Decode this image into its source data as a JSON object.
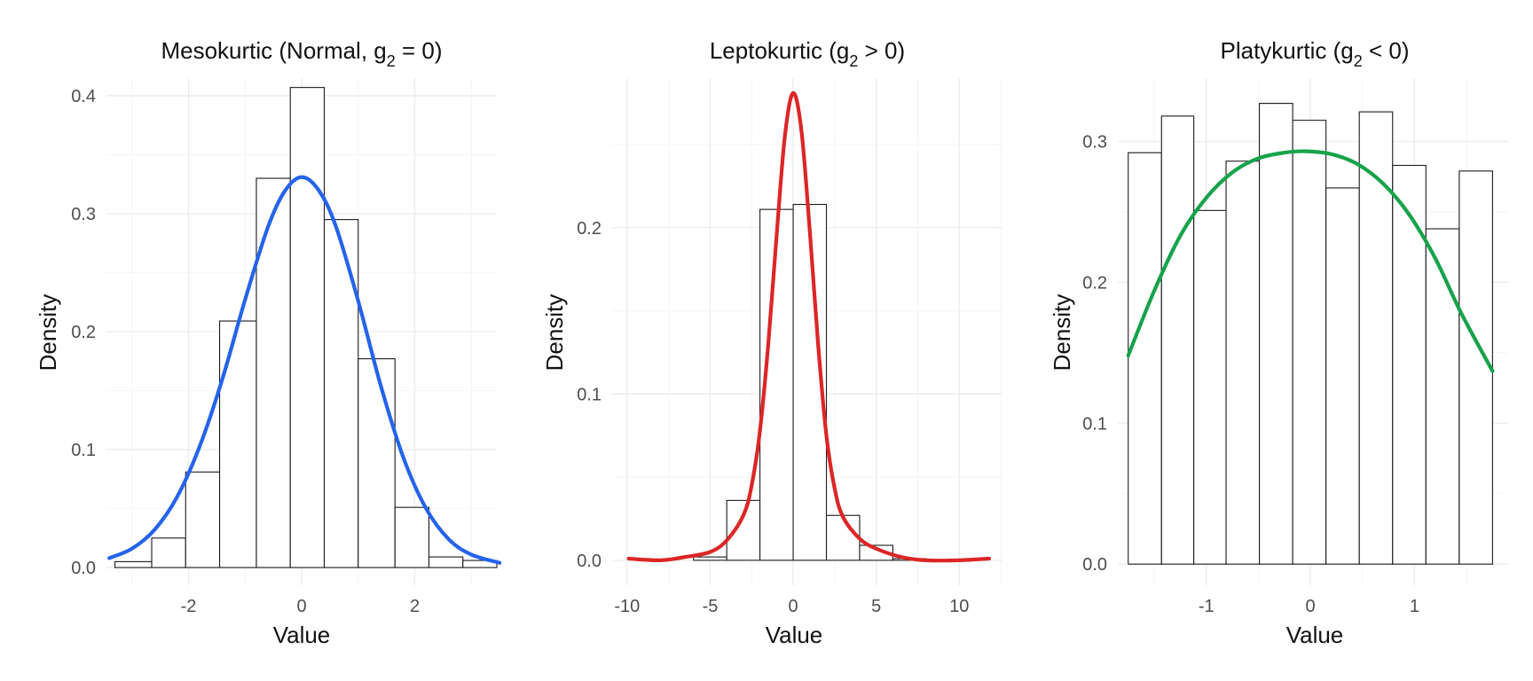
{
  "chart_data": [
    {
      "type": "bar",
      "title_main": "Mesokurtic (Normal, g",
      "title_sub": "2",
      "title_rest": " = 0)",
      "xlabel": "Value",
      "ylabel": "Density",
      "xlim": [
        -3.45,
        3.45
      ],
      "ylim": [
        -0.015,
        0.415
      ],
      "x_ticks": [
        -2,
        0,
        2
      ],
      "x_tick_labels": [
        "-2",
        "0",
        "2"
      ],
      "y_ticks": [
        0.0,
        0.1,
        0.2,
        0.3,
        0.4
      ],
      "y_tick_labels": [
        "0.0",
        "0.1",
        "0.2",
        "0.3",
        "0.4"
      ],
      "grid": true,
      "histogram": {
        "bin_edges": [
          -3.3,
          -2.65,
          -2.05,
          -1.45,
          -0.8,
          -0.2,
          0.4,
          1.0,
          1.65,
          2.25,
          2.85,
          3.45
        ],
        "densities": [
          0.005,
          0.025,
          0.081,
          0.209,
          0.33,
          0.407,
          0.295,
          0.177,
          0.051,
          0.009,
          0.006
        ]
      },
      "density_curve": {
        "x": [
          -3.4,
          -3.0,
          -2.6,
          -2.2,
          -1.8,
          -1.4,
          -1.0,
          -0.6,
          -0.3,
          0.0,
          0.3,
          0.6,
          1.0,
          1.4,
          1.8,
          2.2,
          2.6,
          3.0,
          3.5
        ],
        "y": [
          0.008,
          0.016,
          0.032,
          0.06,
          0.103,
          0.16,
          0.227,
          0.288,
          0.319,
          0.331,
          0.32,
          0.29,
          0.226,
          0.154,
          0.093,
          0.05,
          0.024,
          0.011,
          0.004
        ],
        "color": "#2563eb"
      }
    },
    {
      "type": "bar",
      "title_main": "Leptokurtic (g",
      "title_sub": "2",
      "title_rest": " > 0)",
      "xlabel": "Value",
      "ylabel": "Density",
      "xlim": [
        -10.9,
        12.6
      ],
      "ylim": [
        -0.015,
        0.29
      ],
      "x_ticks": [
        -10,
        -5,
        0,
        5,
        10
      ],
      "x_tick_labels": [
        "-10",
        "-5",
        "0",
        "5",
        "10"
      ],
      "y_ticks": [
        0.0,
        0.1,
        0.2
      ],
      "y_tick_labels": [
        "0.0",
        "0.1",
        "0.2"
      ],
      "grid": true,
      "histogram": {
        "bin_edges": [
          -6.0,
          -4.0,
          -2.0,
          0.0,
          2.0,
          4.0,
          6.0,
          8.0
        ],
        "densities": [
          0.002,
          0.036,
          0.211,
          0.214,
          0.027,
          0.009,
          0.001
        ]
      },
      "density_curve": {
        "x": [
          -9.9,
          -8.0,
          -6.5,
          -5.0,
          -4.0,
          -3.0,
          -2.5,
          -2.0,
          -1.5,
          -1.0,
          -0.5,
          0.0,
          0.5,
          1.0,
          1.5,
          2.0,
          2.5,
          3.0,
          4.0,
          5.0,
          6.5,
          8.0,
          10.0,
          11.8
        ],
        "y": [
          0.001,
          0.0,
          0.002,
          0.005,
          0.012,
          0.027,
          0.045,
          0.078,
          0.13,
          0.195,
          0.255,
          0.281,
          0.258,
          0.198,
          0.13,
          0.075,
          0.043,
          0.026,
          0.013,
          0.007,
          0.002,
          0.0,
          0.0,
          0.001
        ],
        "color": "#dc2626"
      }
    },
    {
      "type": "bar",
      "title_main": "Platykurtic (g",
      "title_sub": "2",
      "title_rest": " < 0)",
      "xlabel": "Value",
      "ylabel": "Density",
      "xlim": [
        -1.85,
        1.9
      ],
      "ylim": [
        -0.015,
        0.345
      ],
      "x_ticks": [
        -1,
        0,
        1
      ],
      "x_tick_labels": [
        "-1",
        "0",
        "1"
      ],
      "y_ticks": [
        0.0,
        0.1,
        0.2,
        0.3
      ],
      "y_tick_labels": [
        "0.0",
        "0.1",
        "0.2",
        "0.3"
      ],
      "grid": true,
      "histogram": {
        "bin_edges": [
          -1.75,
          -1.43,
          -1.12,
          -0.81,
          -0.49,
          -0.17,
          0.15,
          0.47,
          0.79,
          1.11,
          1.43,
          1.75
        ],
        "densities": [
          0.292,
          0.318,
          0.251,
          0.286,
          0.327,
          0.315,
          0.267,
          0.321,
          0.283,
          0.238,
          0.279
        ]
      },
      "density_curve": {
        "x": [
          -1.75,
          -1.5,
          -1.25,
          -1.0,
          -0.75,
          -0.5,
          -0.25,
          -0.05,
          0.2,
          0.45,
          0.7,
          0.95,
          1.2,
          1.45,
          1.75
        ],
        "y": [
          0.148,
          0.194,
          0.233,
          0.26,
          0.278,
          0.288,
          0.292,
          0.293,
          0.291,
          0.284,
          0.27,
          0.248,
          0.217,
          0.178,
          0.137
        ],
        "color": "#16a34a"
      }
    }
  ]
}
